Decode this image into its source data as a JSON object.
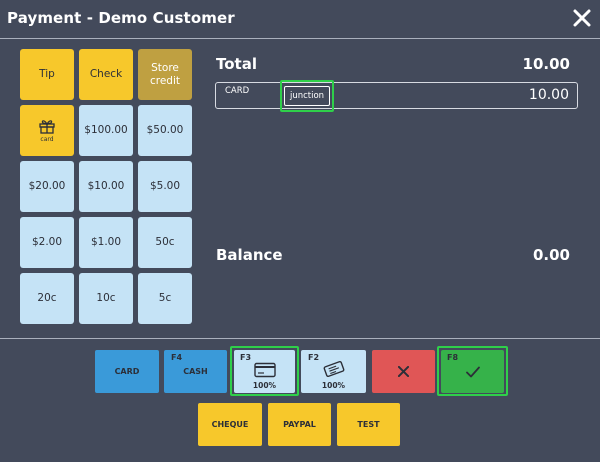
{
  "window": {
    "title": "Payment - Demo Customer",
    "close_icon": "close-icon"
  },
  "keypad": [
    {
      "label": "Tip",
      "style": "yellow"
    },
    {
      "label": "Check",
      "style": "yellow"
    },
    {
      "label": "Store credit",
      "style": "olive"
    },
    {
      "label": "card",
      "icon": "gift-icon",
      "style": "yellow"
    },
    {
      "label": "$100.00",
      "style": "light"
    },
    {
      "label": "$50.00",
      "style": "light"
    },
    {
      "label": "$20.00",
      "style": "light"
    },
    {
      "label": "$10.00",
      "style": "light"
    },
    {
      "label": "$5.00",
      "style": "light"
    },
    {
      "label": "$2.00",
      "style": "light"
    },
    {
      "label": "$1.00",
      "style": "light"
    },
    {
      "label": "50c",
      "style": "light"
    },
    {
      "label": "20c",
      "style": "light"
    },
    {
      "label": "10c",
      "style": "light"
    },
    {
      "label": "5c",
      "style": "light"
    }
  ],
  "summary": {
    "total_label": "Total",
    "total_value": "10.00",
    "payment_line": {
      "method": "CARD",
      "tag": "junction",
      "amount": "10.00"
    },
    "balance_label": "Balance",
    "balance_value": "0.00"
  },
  "payment_buttons": {
    "card": {
      "label": "CARD",
      "color": "#3a9ad9"
    },
    "cash": {
      "shortcut": "F4",
      "label": "CASH",
      "color": "#3a9ad9"
    },
    "card_full": {
      "shortcut": "F3",
      "percent": "100%",
      "icon": "credit-card-icon"
    },
    "voucher": {
      "shortcut": "F2",
      "percent": "100%",
      "icon": "voucher-icon"
    },
    "cancel": {
      "icon": "x-icon",
      "color": "#e05656"
    },
    "confirm": {
      "shortcut": "F8",
      "icon": "checkmark-icon",
      "color": "#36b24a"
    },
    "cheque": {
      "label": "CHEQUE"
    },
    "paypal": {
      "label": "PAYPAL"
    },
    "test": {
      "label": "TEST"
    }
  },
  "colors": {
    "background": "#434a5b",
    "yellow": "#f7c82b",
    "light_blue": "#c5e3f6",
    "highlight": "#2fd04a"
  }
}
